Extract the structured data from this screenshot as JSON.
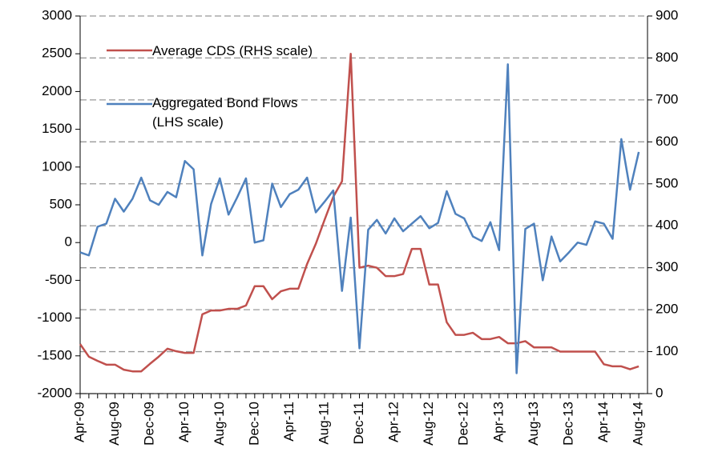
{
  "chart_data": {
    "type": "line",
    "categories": [
      "Apr-09",
      null,
      null,
      null,
      "Aug-09",
      null,
      null,
      null,
      "Dec-09",
      null,
      null,
      null,
      "Apr-10",
      null,
      null,
      null,
      "Aug-10",
      null,
      null,
      null,
      "Dec-10",
      null,
      null,
      null,
      "Apr-11",
      null,
      null,
      null,
      "Aug-11",
      null,
      null,
      null,
      "Dec-11",
      null,
      null,
      null,
      "Apr-12",
      null,
      null,
      null,
      "Aug-12",
      null,
      null,
      null,
      "Dec-12",
      null,
      null,
      null,
      "Apr-13",
      null,
      null,
      null,
      "Aug-13",
      null,
      null,
      null,
      "Dec-13",
      null,
      null,
      null,
      "Apr-14",
      null,
      null,
      null,
      "Aug-14"
    ],
    "series": [
      {
        "name": "Average CDS (RHS scale)",
        "color": "#c0504d",
        "axis": "y2",
        "values": [
          118,
          88,
          78,
          69,
          69,
          57,
          53,
          53,
          71,
          88,
          107,
          101,
          97,
          97,
          189,
          198,
          198,
          202,
          202,
          210,
          256,
          256,
          225,
          244,
          250,
          250,
          309,
          357,
          414,
          469,
          506,
          810,
          300,
          305,
          300,
          280,
          280,
          285,
          345,
          345,
          260,
          260,
          170,
          140,
          140,
          145,
          130,
          130,
          135,
          120,
          120,
          125,
          110,
          110,
          110,
          100,
          100,
          100,
          100,
          100,
          70,
          65,
          65,
          58,
          65
        ]
      },
      {
        "name": "Aggregated Bond Flows (LHS scale)",
        "color": "#4f81bd",
        "values": [
          -130,
          -170,
          210,
          250,
          580,
          410,
          580,
          860,
          560,
          500,
          670,
          600,
          1080,
          970,
          -170,
          510,
          850,
          370,
          600,
          850,
          0,
          30,
          780,
          470,
          640,
          700,
          860,
          400,
          540,
          690,
          -640,
          330,
          -1400,
          170,
          300,
          120,
          320,
          150,
          250,
          350,
          190,
          260,
          680,
          380,
          320,
          80,
          20,
          270,
          -100,
          2360,
          -1730,
          180,
          250,
          -500,
          80,
          -250,
          -130,
          0,
          -30,
          280,
          250,
          50,
          1370,
          700,
          1200
        ]
      }
    ],
    "ylim": [
      -2000,
      3000
    ],
    "yticks": [
      -2000,
      -1500,
      -1000,
      -500,
      0,
      500,
      1000,
      1500,
      2000,
      2500,
      3000
    ],
    "y2lim": [
      0,
      900
    ],
    "y2ticks": [
      0,
      100,
      200,
      300,
      400,
      500,
      600,
      700,
      800,
      900
    ],
    "grid": "y2"
  }
}
